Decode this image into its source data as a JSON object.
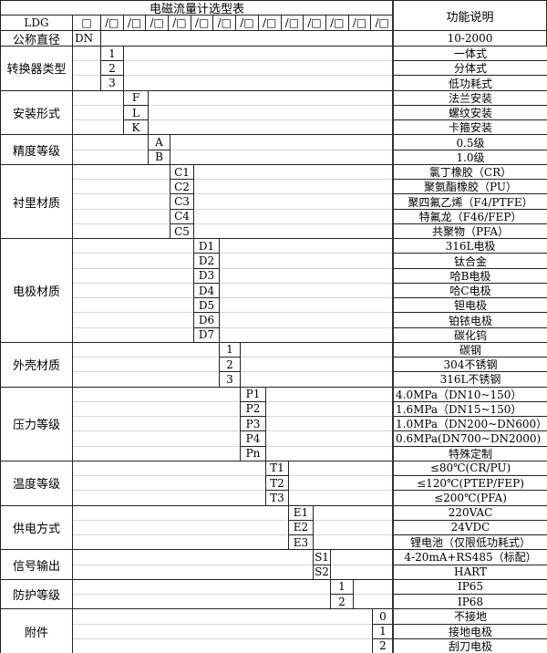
{
  "title": "电磁流量计选型表",
  "function_header": "功能说明",
  "model_row": {
    "prefix": "LDG",
    "first_box": "□",
    "boxes": [
      "/□",
      "/□",
      "/□",
      "/□",
      "/□",
      "/□",
      "/□",
      "/□",
      "/□",
      "/□",
      "/□",
      "/□",
      "/□"
    ]
  },
  "nominal": {
    "label": "公称直径",
    "code": "DN",
    "desc": "10-2000"
  },
  "groups": [
    {
      "label": "转换器类型",
      "codes": [
        "1",
        "2",
        "3"
      ],
      "descs": [
        "一体式",
        "分体式",
        "低功耗式"
      ]
    },
    {
      "label": "安装形式",
      "codes": [
        "F",
        "L",
        "K"
      ],
      "descs": [
        "法兰安装",
        "螺纹安装",
        "卡箍安装"
      ]
    },
    {
      "label": "精度等级",
      "codes": [
        "A",
        "B"
      ],
      "descs": [
        "0.5级",
        "1.0级"
      ]
    },
    {
      "label": "衬里材质",
      "codes": [
        "C1",
        "C2",
        "C3",
        "C4",
        "C5"
      ],
      "descs": [
        "氯丁橡胶（CR）",
        "聚氨酯橡胶（PU）",
        "聚四氟乙烯（F4/PTFE）",
        "特氟龙（F46/FEP）",
        "共聚物（PFA）"
      ]
    },
    {
      "label": "电极材质",
      "codes": [
        "D1",
        "D2",
        "D3",
        "D4",
        "D5",
        "D6",
        "D7"
      ],
      "descs": [
        "316L电极",
        "钛合金",
        "哈B电极",
        "哈C电极",
        "钽电极",
        "铂铱电极",
        "碳化钨"
      ]
    },
    {
      "label": "外壳材质",
      "codes": [
        "1",
        "2",
        "3"
      ],
      "descs": [
        "碳钢",
        "304不锈钢",
        "316L不锈钢"
      ]
    },
    {
      "label": "压力等级",
      "codes": [
        "P1",
        "P2",
        "P3",
        "P4",
        "Pn"
      ],
      "descs": [
        "4.0MPa（DN10~150）",
        "1.6MPa（DN15~150）",
        "1.0MPa（DN200~DN600）",
        "0.6MPa(DN700~DN2000)",
        "特殊定制"
      ],
      "left_align": [
        true,
        true,
        true,
        true,
        false
      ]
    },
    {
      "label": "温度等级",
      "codes": [
        "T1",
        "T2",
        "T3"
      ],
      "descs": [
        "≤80℃(CR/PU)",
        "≤120℃(PTEP/FEP)",
        "≤200℃(PFA)"
      ]
    },
    {
      "label": "供电方式",
      "codes": [
        "E1",
        "E2",
        "E3"
      ],
      "descs": [
        "220VAC",
        "24VDC",
        "锂电池（仅限低功耗式）"
      ]
    },
    {
      "label": "信号输出",
      "codes": [
        "S1",
        "S2"
      ],
      "descs": [
        "4-20mA+RS485（标配）",
        "HART"
      ]
    },
    {
      "label": "防护等级",
      "codes": [
        "1",
        "2"
      ],
      "descs": [
        "IP65",
        "IP68"
      ]
    },
    {
      "label": "附件",
      "codes": [
        "0",
        "1",
        "2"
      ],
      "descs": [
        "不接地",
        "接地电极",
        "刮刀电极"
      ]
    }
  ]
}
